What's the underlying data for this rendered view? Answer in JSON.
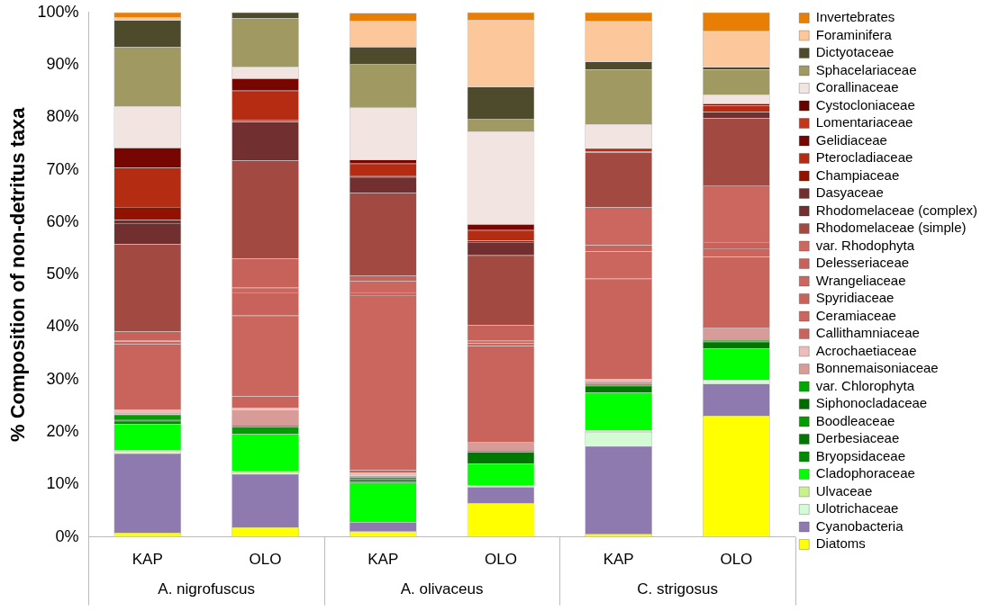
{
  "chart_data": {
    "type": "bar",
    "stacked": true,
    "ylabel": "% Composition of non-detritus taxa",
    "categories": [
      "KAP",
      "OLO",
      "KAP",
      "OLO",
      "KAP",
      "OLO"
    ],
    "annotations": [
      "A. nigrofuscus",
      "A. olivaceus",
      "C. strigosus"
    ],
    "ylim": [
      0,
      1
    ],
    "yticks": [
      {
        "value": 0,
        "label": "0%"
      },
      {
        "value": 0.1,
        "label": "10%"
      },
      {
        "value": 0.2,
        "label": "20%"
      },
      {
        "value": 0.3,
        "label": "30%"
      },
      {
        "value": 0.4,
        "label": "40%"
      },
      {
        "value": 0.5,
        "label": "50%"
      },
      {
        "value": 0.6,
        "label": "60%"
      },
      {
        "value": 0.7,
        "label": "70%"
      },
      {
        "value": 0.8,
        "label": "80%"
      },
      {
        "value": 0.9,
        "label": "90%"
      },
      {
        "value": 1,
        "label": "100%"
      }
    ],
    "grid": false,
    "legend": "right",
    "series": [
      {
        "name": "Diatoms",
        "color": "#ffff00",
        "values": [
          0.008,
          0.018,
          0.01,
          0.064,
          0.005,
          0.231
        ]
      },
      {
        "name": "Cyanobacteria",
        "color": "#8f7ab0",
        "values": [
          0.151,
          0.102,
          0.018,
          0.031,
          0.168,
          0.061
        ]
      },
      {
        "name": "Ulotrichaceae",
        "color": "#d4fcd4",
        "values": [
          0.002,
          0.003,
          0,
          0.003,
          0.027,
          0.007
        ]
      },
      {
        "name": "Ulvaceae",
        "color": "#c8f28a",
        "values": [
          0.004,
          0.002,
          0,
          0,
          0.003,
          0
        ]
      },
      {
        "name": "Cladophoraceae",
        "color": "#00ff00",
        "values": [
          0.05,
          0.071,
          0.075,
          0.041,
          0.072,
          0.06
        ]
      },
      {
        "name": "Bryopsidaceae",
        "color": "#008a00",
        "values": [
          0.006,
          0,
          0.003,
          0,
          0,
          0
        ]
      },
      {
        "name": "Derbesiaceae",
        "color": "#007800",
        "values": [
          0.003,
          0,
          0.004,
          0.023,
          0.013,
          0.013
        ]
      },
      {
        "name": "Boodleaceae",
        "color": "#009c00",
        "values": [
          0.009,
          0.014,
          0.004,
          0.002,
          0.003,
          0.003
        ]
      },
      {
        "name": "Siphonocladaceae",
        "color": "#006c00",
        "values": [
          0,
          0.002,
          0,
          0,
          0,
          0
        ]
      },
      {
        "name": "var. Chlorophyta",
        "color": "#00a800",
        "values": [
          0.001,
          0,
          0,
          0,
          0,
          0
        ]
      },
      {
        "name": "Bonnemaisoniaceae",
        "color": "#d89c98",
        "values": [
          0.002,
          0.03,
          0.003,
          0.017,
          0.005,
          0.024
        ]
      },
      {
        "name": "Acrochaetiaceae",
        "color": "#ecbcb8",
        "values": [
          0.006,
          0.004,
          0.005,
          0,
          0.005,
          0
        ]
      },
      {
        "name": "Callithamniaceae",
        "color": "#c9645c",
        "values": [
          0.126,
          0.022,
          0.005,
          0.183,
          0.191,
          0.135
        ]
      },
      {
        "name": "Ceramiaceae",
        "color": "#ca665e",
        "values": [
          0.005,
          0.154,
          0.334,
          0.005,
          0.052,
          0.016
        ]
      },
      {
        "name": "Spyridiaceae",
        "color": "#c8635b",
        "values": [
          0,
          0.044,
          0.005,
          0.005,
          0.012,
          0.012
        ]
      },
      {
        "name": "Wrangeliaceae",
        "color": "#cb675f",
        "values": [
          0.001,
          0.009,
          0.022,
          0,
          0.072,
          0.108
        ]
      },
      {
        "name": "Delesseriaceae",
        "color": "#c7625a",
        "values": [
          0.018,
          0.056,
          0.01,
          0.03,
          0,
          0
        ]
      },
      {
        "name": "var. Rhodophyta",
        "color": "#cc685f",
        "values": [
          0,
          0,
          0,
          0,
          0,
          0
        ]
      },
      {
        "name": "Rhodomelaceae (simple)",
        "color": "#a24a42",
        "values": [
          0.166,
          0.187,
          0.158,
          0.133,
          0.105,
          0.128
        ]
      },
      {
        "name": "Rhodomelaceae (complex)",
        "color": "#722f2f",
        "values": [
          0.04,
          0.073,
          0.03,
          0.025,
          0.002,
          0.012
        ]
      },
      {
        "name": "Dasyaceae",
        "color": "#732e2e",
        "values": [
          0.006,
          0.003,
          0.003,
          0.003,
          0,
          0
        ]
      },
      {
        "name": "Champiaceae",
        "color": "#921200",
        "values": [
          0.025,
          0,
          0,
          0,
          0,
          0
        ]
      },
      {
        "name": "Pterocladiaceae",
        "color": "#b42c12",
        "values": [
          0.075,
          0.057,
          0.023,
          0.02,
          0.006,
          0.012
        ]
      },
      {
        "name": "Gelidiaceae",
        "color": "#780600",
        "values": [
          0.038,
          0.023,
          0.007,
          0.011,
          0,
          0.004
        ]
      },
      {
        "name": "Lomentariaceae",
        "color": "#c4361c",
        "values": [
          0,
          0,
          0,
          0,
          0,
          0
        ]
      },
      {
        "name": "Cystocloniaceae",
        "color": "#640400",
        "values": [
          0,
          0,
          0,
          0,
          0,
          0
        ]
      },
      {
        "name": "Corallinaceae",
        "color": "#f2e4e1",
        "values": [
          0.079,
          0.022,
          0.099,
          0.177,
          0.046,
          0.017
        ]
      },
      {
        "name": "Sphacelariaceae",
        "color": "#a09a62",
        "values": [
          0.113,
          0.093,
          0.084,
          0.024,
          0.104,
          0.048
        ]
      },
      {
        "name": "Dictyotaceae",
        "color": "#4e4a2c",
        "values": [
          0.051,
          0.011,
          0.032,
          0.061,
          0.015,
          0.005
        ]
      },
      {
        "name": "Foraminifera",
        "color": "#fcc89b",
        "values": [
          0.006,
          0,
          0.05,
          0.128,
          0.077,
          0.068
        ]
      },
      {
        "name": "Invertebrates",
        "color": "#e87e04",
        "values": [
          0.009,
          0,
          0.015,
          0.014,
          0.017,
          0.036
        ]
      }
    ]
  }
}
